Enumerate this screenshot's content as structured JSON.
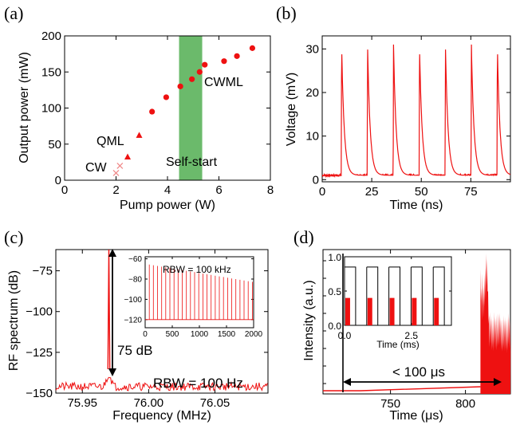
{
  "colors": {
    "series": "#ee1111",
    "band": "#3aa33a",
    "band_text": "#2a9a2a",
    "axis": "#000000",
    "arrow": "#000000"
  },
  "chart_data": [
    {
      "panel": "(a)",
      "type": "scatter",
      "xlabel": "Pump power (W)",
      "ylabel": "Output power (mW)",
      "xlim": [
        0,
        8
      ],
      "ylim": [
        0,
        200
      ],
      "xticks": [
        "0",
        "2",
        "4",
        "6",
        "8"
      ],
      "yticks": [
        "0",
        "50",
        "100",
        "150",
        "200"
      ],
      "band": {
        "x0": 4.45,
        "x1": 5.35,
        "label": "Self-start"
      },
      "series": [
        {
          "name": "CW",
          "marker": "x",
          "x": [
            2.0,
            2.15
          ],
          "y": [
            10,
            20
          ]
        },
        {
          "name": "QML",
          "marker": "triangle",
          "x": [
            2.45,
            2.9
          ],
          "y": [
            32,
            62
          ]
        },
        {
          "name": "CWML",
          "marker": "circle",
          "x": [
            3.4,
            3.95,
            4.5,
            4.95,
            5.25,
            5.45,
            6.2,
            6.7,
            7.3
          ],
          "y": [
            95,
            115,
            130,
            140,
            150,
            160,
            165,
            172,
            183
          ]
        }
      ],
      "annotations": [
        "CW",
        "QML",
        "CWML",
        "Self-start"
      ]
    },
    {
      "panel": "(b)",
      "type": "line",
      "xlabel": "Time (ns)",
      "ylabel": "Voltage (mV)",
      "xlim": [
        0,
        95
      ],
      "ylim": [
        -0.5,
        33
      ],
      "xticks": [
        "0",
        "25",
        "50",
        "75"
      ],
      "yticks": [
        "0",
        "10",
        "20",
        "30"
      ],
      "pulse_times": [
        9.8,
        22.9,
        36.0,
        49.1,
        62.2,
        75.3,
        88.4
      ],
      "pulse_peak": 31,
      "baseline": 1
    },
    {
      "panel": "(c)",
      "type": "line",
      "xlabel": "Frequency (MHz)",
      "ylabel": "RF spectrum (dB)",
      "xlim": [
        75.93,
        76.09
      ],
      "ylim": [
        -150,
        -62
      ],
      "xticks": [
        "75.95",
        "76.00",
        "76.05"
      ],
      "yticks": [
        "-75",
        "-100",
        "-125",
        "-150"
      ],
      "peak_freq": 75.97,
      "noise_floor": -146,
      "annotations": [
        "75 dB",
        "RBW = 100 Hz"
      ],
      "inset": {
        "type": "line",
        "label": "RBW = 100 kHz",
        "xlim": [
          0,
          2000
        ],
        "ylim": [
          -128,
          -58
        ],
        "xticks": [
          "0",
          "500",
          "1000",
          "1500",
          "2000"
        ],
        "yticks": [
          "-60",
          "-80",
          "-100",
          "-120"
        ],
        "harmonic_spacing": 76,
        "first_peak": -65,
        "last_peak": -83,
        "floor": -120
      }
    },
    {
      "panel": "(d)",
      "type": "line",
      "xlabel": "Time (μs)",
      "ylabel": "Intensity (a.u.)",
      "xlim": [
        705,
        830
      ],
      "xticks": [
        "750",
        "800"
      ],
      "annotations": [
        "< 100 μs"
      ],
      "arrow": {
        "start": 730,
        "end": 810
      },
      "inset": {
        "type": "line",
        "xlabel": "Time (ms)",
        "xlim": [
          0,
          4
        ],
        "ylim": [
          0,
          1.0
        ],
        "xticks": [
          "0.0",
          "2.5"
        ],
        "yticks": [
          "0.0",
          "0.5",
          "1.0"
        ],
        "square_level": 0.85,
        "pulse_level": 0.4,
        "period": 0.83
      }
    }
  ],
  "panel_labels": [
    "(a)",
    "(b)",
    "(c)",
    "(d)"
  ]
}
